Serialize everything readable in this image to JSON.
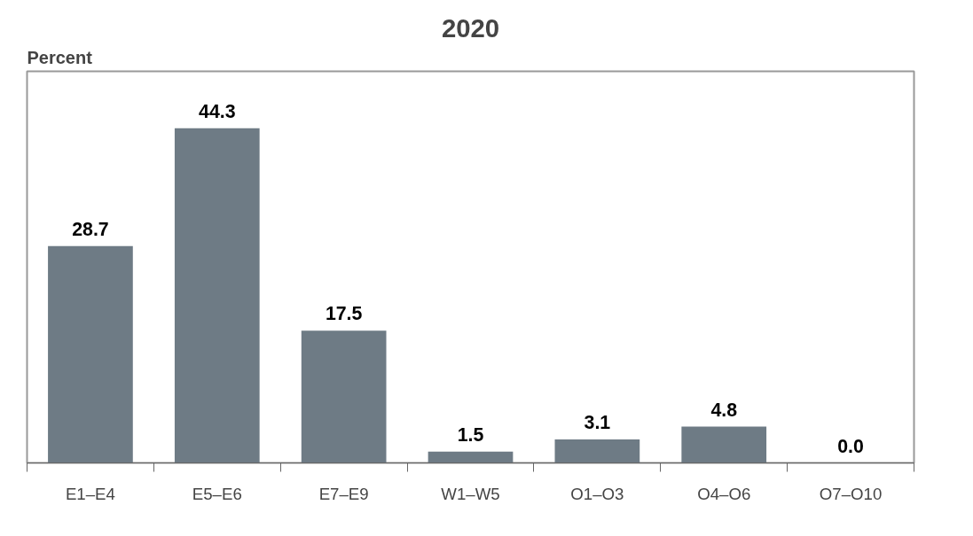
{
  "chart_data": {
    "type": "bar",
    "title": "2020",
    "ylabel": "Percent",
    "categories": [
      "E1–E4",
      "E5–E6",
      "E7–E9",
      "W1–W5",
      "O1–O3",
      "O4–O6",
      "O7–O10"
    ],
    "values": [
      28.7,
      44.3,
      17.5,
      1.5,
      3.1,
      4.8,
      0.0
    ],
    "value_labels": [
      "28.7",
      "44.3",
      "17.5",
      "1.5",
      "3.1",
      "4.8",
      "0.0"
    ],
    "color": "#6e7b85",
    "grid": false
  }
}
